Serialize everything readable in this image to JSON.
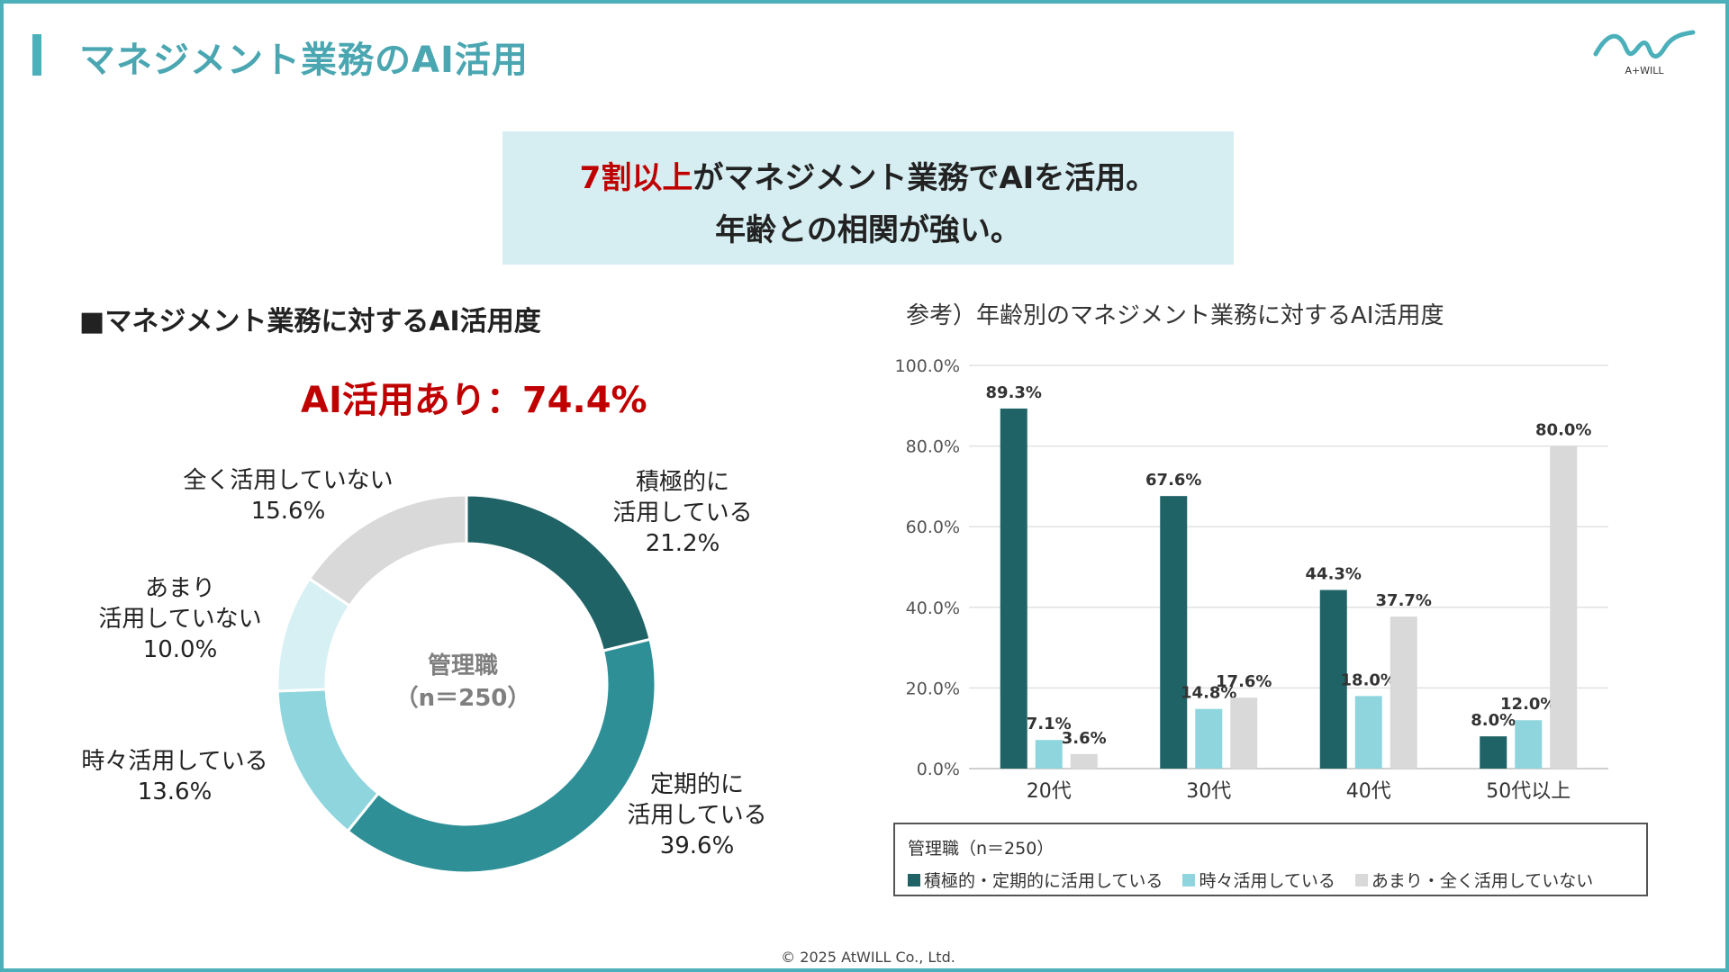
{
  "header": {
    "title": "マネジメント業務のAI活用",
    "logo_text": "A+WILL"
  },
  "highlight": {
    "line1_red": "7割以上",
    "line1_rest": "がマネジメント業務でAIを活用。",
    "line2": "年齢との相関が強い。"
  },
  "left_panel": {
    "title": "■マネジメント業務に対するAI活用度",
    "big_stat": "AI活用あり：74.4%"
  },
  "right_panel": {
    "title": "参考）年齢別のマネジメント業務に対するAI活用度"
  },
  "footer": {
    "copyright": "© 2025 AtWILL  Co., Ltd."
  },
  "colors": {
    "accent": "#4bb0ba",
    "highlight_bg": "#d6eef2",
    "red": "#c00000",
    "dark_teal": "#1f6367",
    "teal": "#2e8f96",
    "light_teal": "#8fd5dd",
    "pale_teal": "#d7f0f3",
    "light_gray": "#d9d9d9"
  },
  "chart_data": [
    {
      "type": "pie",
      "donut": true,
      "center_label": [
        "管理職",
        "（n＝250）"
      ],
      "slices": [
        {
          "label": [
            "積極的に",
            "活用している"
          ],
          "value": 21.2,
          "value_label": "21.2%",
          "color": "#1f6367"
        },
        {
          "label": [
            "定期的に",
            "活用している"
          ],
          "value": 39.6,
          "value_label": "39.6%",
          "color": "#2e8f96"
        },
        {
          "label": [
            "時々活用している"
          ],
          "value": 13.6,
          "value_label": "13.6%",
          "color": "#8fd5dd"
        },
        {
          "label": [
            "あまり",
            "活用していない"
          ],
          "value": 10.0,
          "value_label": "10.0%",
          "color": "#d7f0f3"
        },
        {
          "label": [
            "全く活用していない"
          ],
          "value": 15.6,
          "value_label": "15.6%",
          "color": "#d9d9d9"
        }
      ]
    },
    {
      "type": "bar",
      "categories": [
        "20代",
        "30代",
        "40代",
        "50代以上"
      ],
      "ylim": [
        0,
        100
      ],
      "yticks": [
        "0.0%",
        "20.0%",
        "40.0%",
        "60.0%",
        "80.0%",
        "100.0%"
      ],
      "grid": true,
      "series": [
        {
          "name": "積極的・定期的に活用している",
          "values": [
            89.3,
            67.6,
            44.3,
            8.0
          ],
          "labels": [
            "89.3%",
            "67.6%",
            "44.3%",
            "8.0%"
          ],
          "color": "#1f6367"
        },
        {
          "name": "時々活用している",
          "values": [
            7.1,
            14.8,
            18.0,
            12.0
          ],
          "labels": [
            "7.1%",
            "14.8%",
            "18.0%",
            "12.0%"
          ],
          "color": "#8fd5dd"
        },
        {
          "name": "あまり・全く活用していない",
          "values": [
            3.6,
            17.6,
            37.7,
            80.0
          ],
          "labels": [
            "3.6%",
            "17.6%",
            "37.7%",
            "80.0%"
          ],
          "color": "#d9d9d9"
        }
      ],
      "legend_title": "管理職（n＝250）",
      "legend_position": "bottom"
    }
  ]
}
